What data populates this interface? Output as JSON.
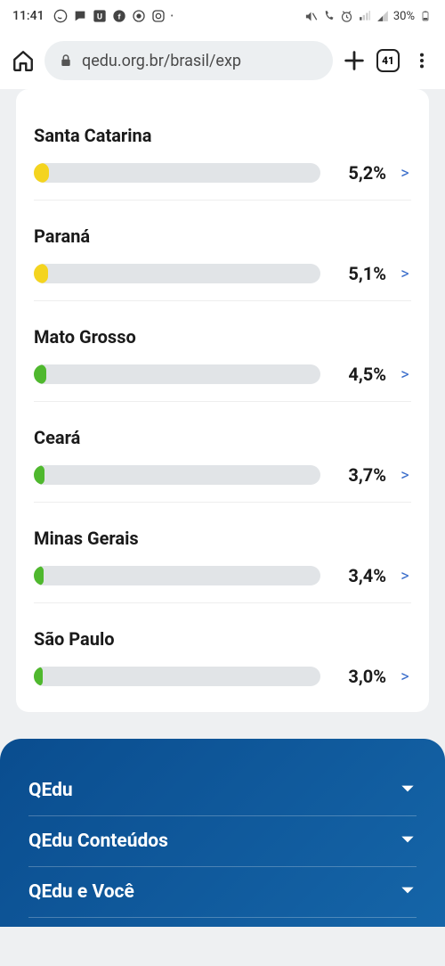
{
  "status": {
    "time": "11:41",
    "batteryText": "30%"
  },
  "browser": {
    "url": "qedu.org.br/brasil/exp",
    "tabCount": "41"
  },
  "states": [
    {
      "name": "Santa Catarina",
      "pct": "5,2%",
      "value": 5.2,
      "color": "#f4d41f"
    },
    {
      "name": "Paraná",
      "pct": "5,1%",
      "value": 5.1,
      "color": "#f4d41f"
    },
    {
      "name": "Mato Grosso",
      "pct": "4,5%",
      "value": 4.5,
      "color": "#4fb82e"
    },
    {
      "name": "Ceará",
      "pct": "3,7%",
      "value": 3.7,
      "color": "#4fb82e"
    },
    {
      "name": "Minas Gerais",
      "pct": "3,4%",
      "value": 3.4,
      "color": "#4fb82e"
    },
    {
      "name": "São Paulo",
      "pct": "3,0%",
      "value": 3.0,
      "color": "#4fb82e"
    }
  ],
  "chart": {
    "trackColor": "#e1e4e7",
    "barHeight": 22,
    "maxScale": 100
  },
  "footer": {
    "bgGradient": [
      "#0a4d8f",
      "#1565a8"
    ],
    "items": [
      {
        "label": "QEdu"
      },
      {
        "label": "QEdu Conteúdos"
      },
      {
        "label": "QEdu e Você"
      }
    ]
  }
}
